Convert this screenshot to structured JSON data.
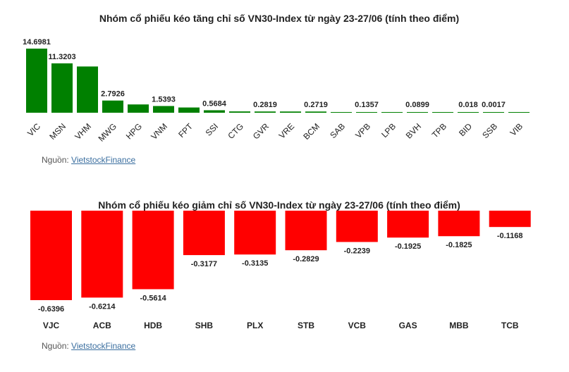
{
  "chart_data": [
    {
      "type": "bar",
      "title": "Nhóm cổ phiếu kéo tăng chỉ số VN30-Index từ ngày 23-27/06 (tính theo điểm)",
      "categories": [
        "VIC",
        "MSN",
        "VHM",
        "MWG",
        "HPG",
        "VNM",
        "FPT",
        "SSI",
        "CTG",
        "GVR",
        "VRE",
        "BCM",
        "SAB",
        "VPB",
        "LPB",
        "BVH",
        "TPB",
        "BID",
        "SSB",
        "VIB"
      ],
      "values": [
        14.6981,
        11.3203,
        10.6,
        2.7926,
        1.9,
        1.5393,
        1.2,
        0.5684,
        0.3,
        0.2819,
        0.28,
        0.2719,
        0.15,
        0.1357,
        0.1,
        0.0899,
        0.05,
        0.018,
        0.0017,
        0.001
      ],
      "data_labels": [
        "14.6981",
        "11.3203",
        "",
        "2.7926",
        "",
        "1.5393",
        "",
        "0.5684",
        "",
        "0.2819",
        "",
        "0.2719",
        "",
        "0.1357",
        "",
        "0.0899",
        "",
        "0.018",
        "0.0017",
        ""
      ],
      "color": "#008000"
    },
    {
      "type": "bar",
      "title": "Nhóm cổ phiếu kéo giảm chỉ số VN30-Index từ ngày 23-27/06 (tính theo điểm)",
      "categories": [
        "VJC",
        "ACB",
        "HDB",
        "SHB",
        "PLX",
        "STB",
        "VCB",
        "GAS",
        "MBB",
        "TCB"
      ],
      "values": [
        -0.6396,
        -0.6214,
        -0.5614,
        -0.3177,
        -0.3135,
        -0.2829,
        -0.2239,
        -0.1925,
        -0.1825,
        -0.1168
      ],
      "data_labels": [
        "-0.6396",
        "-0.6214",
        "-0.5614",
        "-0.3177",
        "-0.3135",
        "-0.2829",
        "-0.2239",
        "-0.1925",
        "-0.1825",
        "-0.1168"
      ],
      "color": "#ff0000"
    }
  ],
  "source": {
    "label": "Nguồn:",
    "link_text": "VietstockFinance"
  }
}
